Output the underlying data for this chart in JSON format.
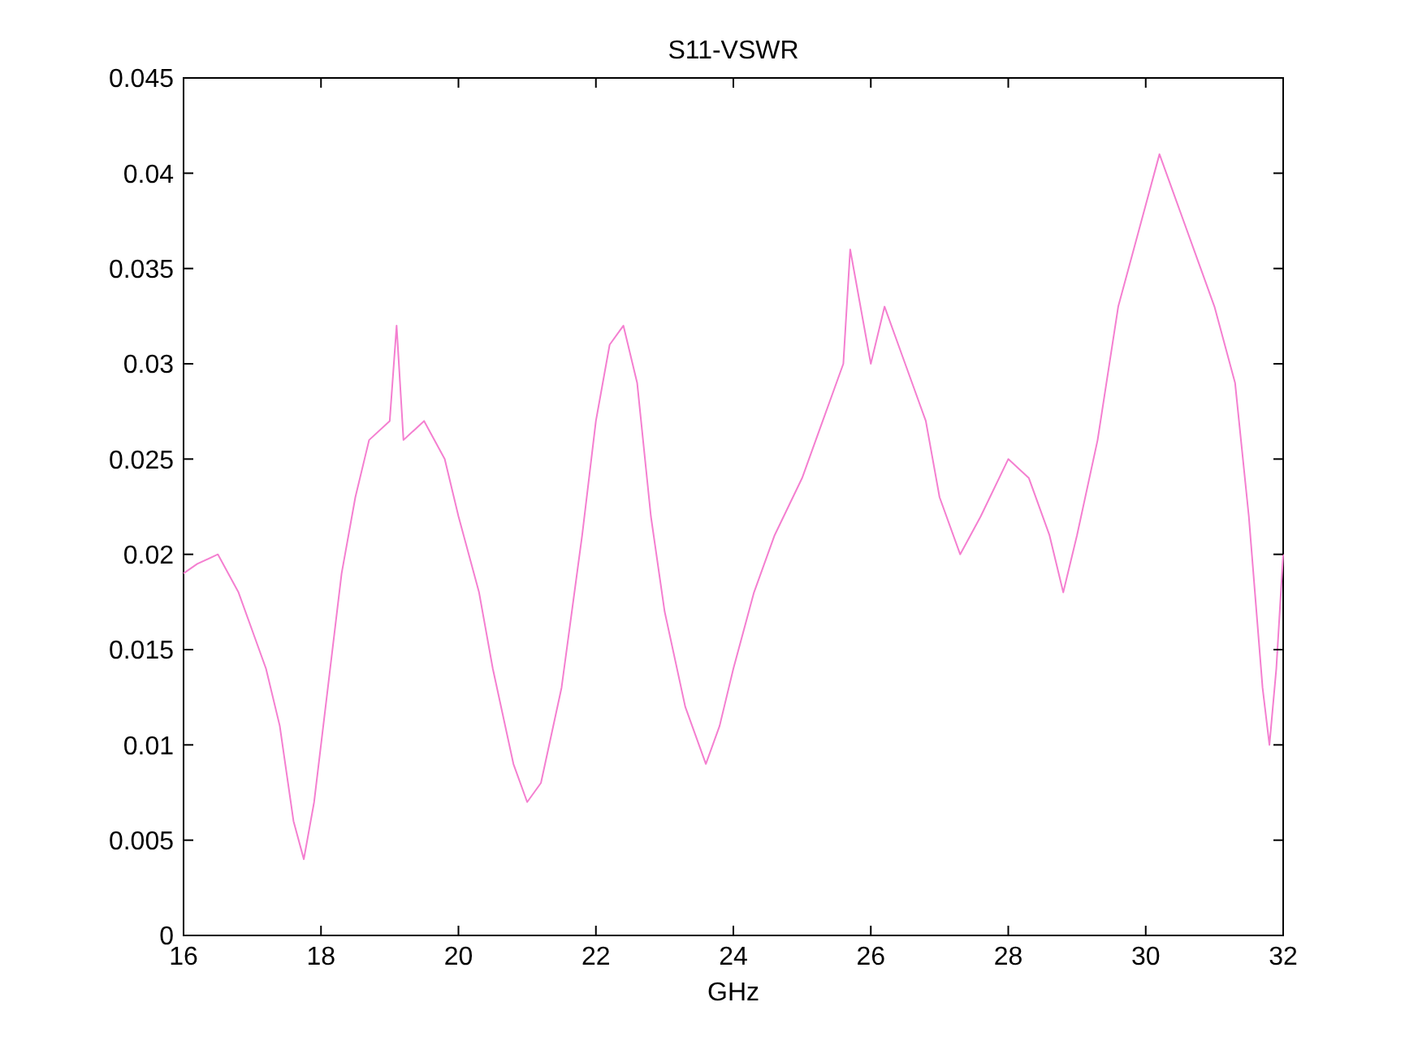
{
  "chart_data": {
    "type": "line",
    "title": "S11-VSWR",
    "xlabel": "GHz",
    "x": [
      16,
      16.2,
      16.5,
      16.8,
      17,
      17.2,
      17.4,
      17.6,
      17.75,
      17.9,
      18.1,
      18.3,
      18.5,
      18.7,
      19,
      19.1,
      19.2,
      19.5,
      19.8,
      20,
      20.3,
      20.5,
      20.8,
      21,
      21.2,
      21.5,
      21.8,
      22,
      22.2,
      22.4,
      22.6,
      22.8,
      23,
      23.3,
      23.6,
      23.8,
      24,
      24.3,
      24.6,
      25,
      25.3,
      25.6,
      25.7,
      26,
      26.2,
      26.5,
      26.8,
      27,
      27.3,
      27.6,
      28,
      28.3,
      28.6,
      28.8,
      29,
      29.3,
      29.6,
      29.9,
      30.2,
      30.5,
      30.8,
      31,
      31.3,
      31.5,
      31.7,
      31.8,
      31.9,
      32
    ],
    "series": [
      {
        "color": "#f47fd0",
        "values": [
          0.019,
          0.0195,
          0.02,
          0.018,
          0.016,
          0.014,
          0.011,
          0.006,
          0.004,
          0.007,
          0.013,
          0.019,
          0.023,
          0.026,
          0.027,
          0.032,
          0.026,
          0.027,
          0.025,
          0.022,
          0.018,
          0.014,
          0.009,
          0.007,
          0.008,
          0.013,
          0.021,
          0.027,
          0.031,
          0.032,
          0.029,
          0.022,
          0.017,
          0.012,
          0.009,
          0.011,
          0.014,
          0.018,
          0.021,
          0.024,
          0.027,
          0.03,
          0.036,
          0.03,
          0.033,
          0.03,
          0.027,
          0.023,
          0.02,
          0.022,
          0.025,
          0.024,
          0.021,
          0.018,
          0.021,
          0.026,
          0.033,
          0.037,
          0.041,
          0.038,
          0.035,
          0.033,
          0.029,
          0.022,
          0.013,
          0.01,
          0.014,
          0.02
        ]
      }
    ],
    "xlim": [
      16,
      32
    ],
    "xticks": [
      16,
      18,
      20,
      22,
      24,
      26,
      28,
      30,
      32
    ],
    "ylim": [
      0,
      0.045
    ],
    "yticks": [
      0,
      0.005,
      0.01,
      0.015,
      0.02,
      0.025,
      0.03,
      0.035,
      0.04,
      0.045
    ],
    "grid": false
  }
}
